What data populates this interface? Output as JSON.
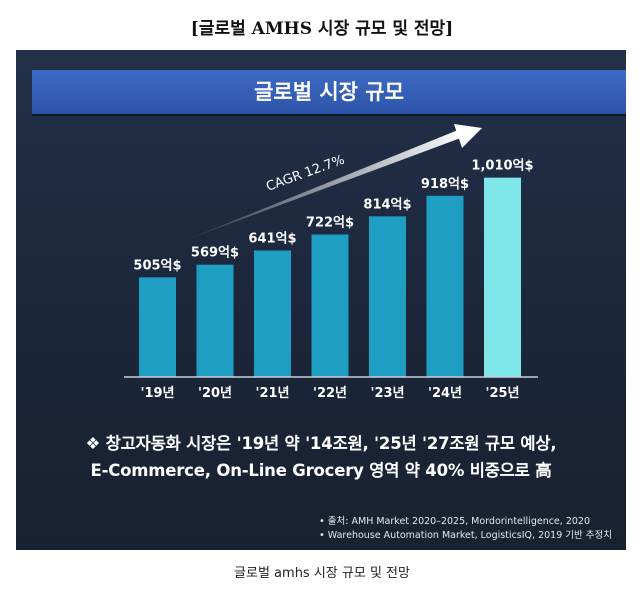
{
  "page_title": "[글로벌 AMHS 시장 규모 및 전망]",
  "panel_header": "글로벌 시장 규모",
  "chart_data": {
    "type": "bar",
    "categories": [
      "'19년",
      "'20년",
      "'21년",
      "'22년",
      "'23년",
      "'24년",
      "'25년"
    ],
    "values": [
      505,
      569,
      641,
      722,
      814,
      918,
      1010
    ],
    "data_labels": [
      "505억$",
      "569억$",
      "641억$",
      "722억$",
      "814억$",
      "918억$",
      "1,010억$"
    ],
    "unit": "억$",
    "ylim": [
      0,
      1150
    ],
    "grid": false,
    "annotation": "CAGR 12.7%",
    "bar_color": "#1f9ec4",
    "highlight_color": "#7fe6ea",
    "highlight_index": 6
  },
  "summary": {
    "line1": "❖ 창고자동화 시장은 '19년 약 '14조원, '25년 '27조원 규모 예상,",
    "line2": "E-Commerce, On-Line Grocery 영역 약 40% 비중으로 高"
  },
  "sources": [
    "•   출처: AMH Market 2020–2025, Mordorintelligence, 2020",
    "•   Warehouse Automation Market, LogisticsIQ, 2019 기반 추정치"
  ],
  "caption": "글로벌 amhs 시장 규모 및 전망"
}
